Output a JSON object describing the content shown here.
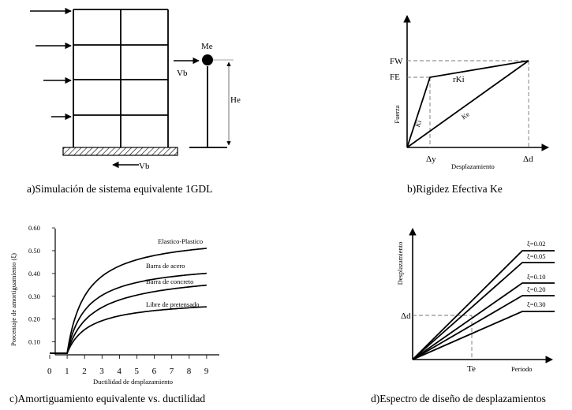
{
  "panel_a": {
    "caption": "a)Simulación de sistema equivalente 1GDL",
    "mass_label": "Me",
    "shear_label": "Vb",
    "base_shear_label": "Vb",
    "height_label": "He"
  },
  "panel_b": {
    "caption": "b)Rigidez Efectiva Ke",
    "y_axis_label": "Fuerza",
    "x_axis_label": "Desplazamiento",
    "fw_label": "FW",
    "fe_label": "FE",
    "dy_label": "Δy",
    "dd_label": "Δd",
    "rk_label": "rKi",
    "ki_label": "Ki",
    "ke_label": "Ke"
  },
  "panel_c": {
    "caption": "c)Amortiguamiento equivalente vs. ductilidad",
    "y_axis_label": "Porcentaje de amortiguamiento (ξ)",
    "x_axis_label": "Ductilidad de desplazamiento",
    "x_ticks": [
      "0",
      "1",
      "2",
      "3",
      "4",
      "5",
      "6",
      "7",
      "8",
      "9"
    ],
    "y_ticks": [
      "0.10",
      "0.20",
      "0.30",
      "0.40",
      "0.50",
      "0.60"
    ],
    "curve_labels": [
      "Elastico-Plastico",
      "Barra de acero",
      "Barra de concreto",
      "Libre de pretensado"
    ]
  },
  "panel_d": {
    "caption": "d)Espectro de diseño de desplazamientos",
    "y_axis_label": "Desplazamiento",
    "x_axis_label": "Periodo",
    "delta_label": "Δd",
    "te_label": "Te",
    "xi_labels": [
      "ξ=0.02",
      "ξ=0.05",
      "ξ=0.10",
      "ξ=0.20",
      "ξ=0.30"
    ]
  }
}
